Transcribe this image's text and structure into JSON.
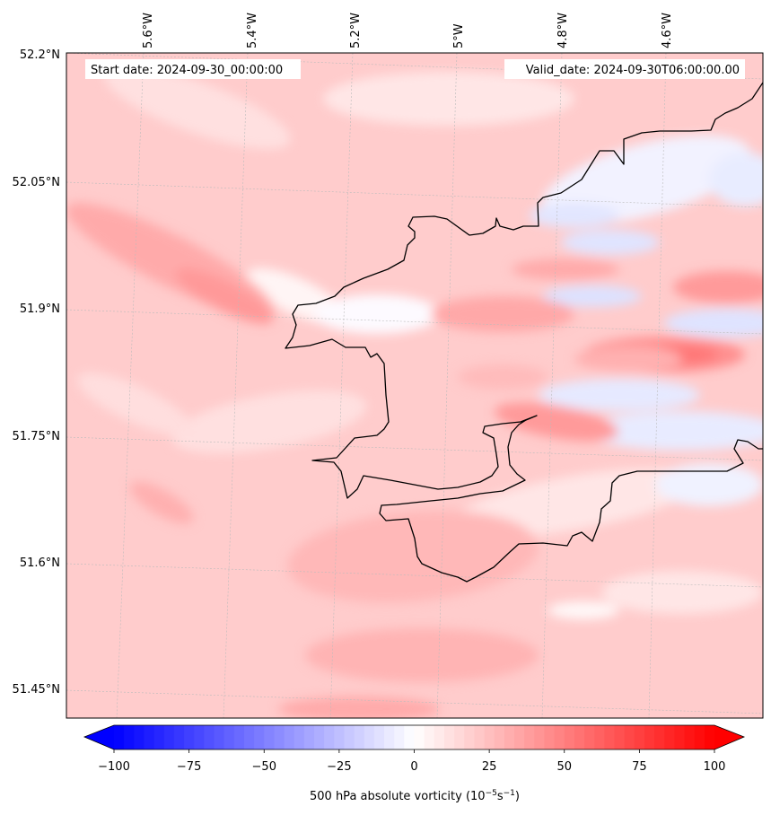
{
  "header": {
    "start_date": "Start date: 2024-09-30_00:00:00",
    "valid_date": "Valid_date: 2024-09-30T06:00:00.00"
  },
  "lon_labels": [
    "5.6°W",
    "5.4°W",
    "5.2°W",
    "5°W",
    "4.8°W",
    "4.6°W"
  ],
  "lat_labels": [
    "52.2°N",
    "52.05°N",
    "51.9°N",
    "51.75°N",
    "51.6°N",
    "51.45°N"
  ],
  "colorbar": {
    "ticks": [
      "−100",
      "−75",
      "−50",
      "−25",
      "0",
      "25",
      "50",
      "75",
      "100"
    ],
    "label_main": "500 hPa absolute vorticity (10",
    "label_exp1": "−5",
    "label_mid": "s",
    "label_exp2": "−1",
    "label_end": ")",
    "range": [
      -100,
      100
    ],
    "levels": 60,
    "colormap": "bwr"
  },
  "colors": {
    "coastline": "#000000",
    "gridline": "#bbbbbb",
    "low": "#0000ff",
    "mid": "#ffffff",
    "high": "#ff0000"
  }
}
